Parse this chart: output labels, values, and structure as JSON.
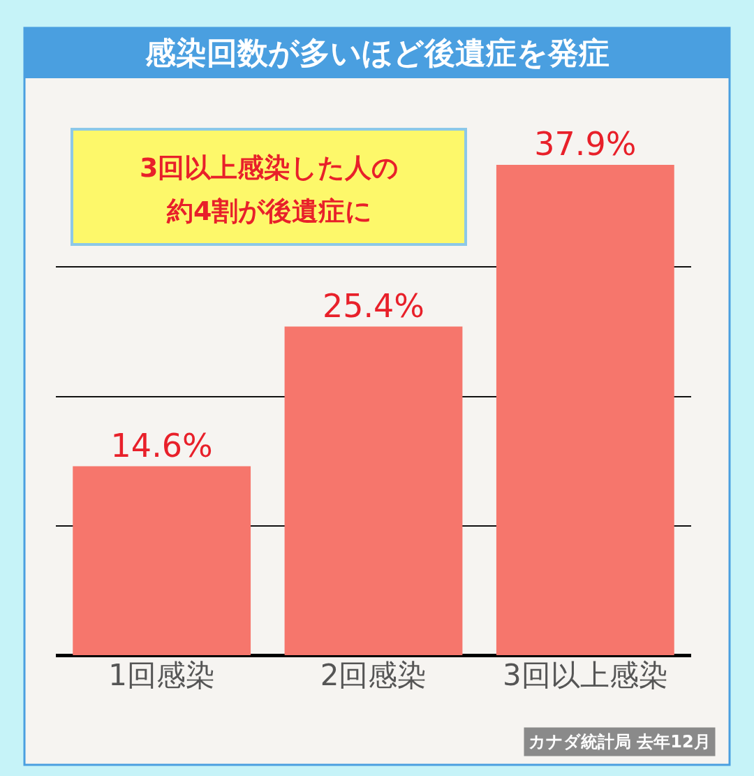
{
  "chart_data": {
    "type": "bar",
    "title": "感染回数が多いほど後遺症を発症",
    "categories": [
      "1回感染",
      "2回感染",
      "3回以上感染"
    ],
    "values": [
      14.6,
      25.4,
      37.9
    ],
    "value_labels": [
      "14.6%",
      "25.4%",
      "37.9%"
    ],
    "color": "#f6766c",
    "tick_labels": "x",
    "grid": "y",
    "annotations": [
      "3回以上感染した人の",
      "約4割が後遺症に",
      "カナダ統計局 去年12月"
    ]
  }
}
